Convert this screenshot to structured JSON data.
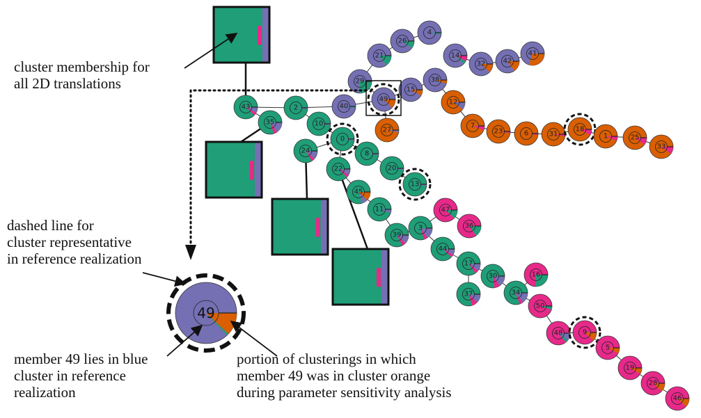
{
  "colors": {
    "green": "#1f9e77",
    "blue": "#7570b3",
    "orange": "#d95f02",
    "pink": "#e7298a"
  },
  "annotations": {
    "membership": "cluster membership for\nall 2D translations",
    "dashed": "dashed line for\ncluster representative\nin reference realization",
    "member": "member 49 lies in blue\ncluster in reference\nrealization",
    "portion": "portion of clusterings in which\nmember 49 was in cluster orange\nduring parameter sensitivity analysis"
  },
  "legend_node": {
    "label": "49",
    "cluster": "blue",
    "representative": true,
    "wedges": [
      {
        "color": "orange",
        "fraction": 0.12
      },
      {
        "color": "green",
        "fraction": 0.01
      }
    ]
  },
  "nodes": [
    {
      "id": "4",
      "cluster": "blue",
      "rep": false,
      "wedges": [
        {
          "color": "green",
          "fraction": 0.02
        }
      ]
    },
    {
      "id": "26",
      "cluster": "blue",
      "rep": false,
      "wedges": [
        {
          "color": "green",
          "fraction": 0.1
        }
      ]
    },
    {
      "id": "21",
      "cluster": "blue",
      "rep": false,
      "wedges": [
        {
          "color": "green",
          "fraction": 0.15
        }
      ]
    },
    {
      "id": "14",
      "cluster": "blue",
      "rep": false,
      "wedges": [
        {
          "color": "pink",
          "fraction": 0.08
        },
        {
          "color": "green",
          "fraction": 0.04
        }
      ]
    },
    {
      "id": "32",
      "cluster": "blue",
      "rep": false,
      "wedges": [
        {
          "color": "orange",
          "fraction": 0.12
        }
      ]
    },
    {
      "id": "42",
      "cluster": "blue",
      "rep": false,
      "wedges": [
        {
          "color": "orange",
          "fraction": 0.15
        }
      ]
    },
    {
      "id": "41",
      "cluster": "blue",
      "rep": false,
      "wedges": [
        {
          "color": "orange",
          "fraction": 0.3
        }
      ]
    },
    {
      "id": "29",
      "cluster": "blue",
      "rep": false,
      "wedges": [
        {
          "color": "green",
          "fraction": 0.25
        }
      ]
    },
    {
      "id": "38",
      "cluster": "blue",
      "rep": false,
      "wedges": [
        {
          "color": "orange",
          "fraction": 0.05
        }
      ]
    },
    {
      "id": "15",
      "cluster": "blue",
      "rep": false,
      "wedges": [
        {
          "color": "orange",
          "fraction": 0.08
        }
      ]
    },
    {
      "id": "49",
      "cluster": "blue",
      "rep": true,
      "wedges": [
        {
          "color": "orange",
          "fraction": 0.12
        }
      ]
    },
    {
      "id": "40",
      "cluster": "blue",
      "rep": false,
      "wedges": [
        {
          "color": "green",
          "fraction": 0.02
        }
      ]
    },
    {
      "id": "12",
      "cluster": "orange",
      "rep": false,
      "wedges": [
        {
          "color": "blue",
          "fraction": 0.1
        }
      ]
    },
    {
      "id": "27",
      "cluster": "orange",
      "rep": false,
      "wedges": [
        {
          "color": "blue",
          "fraction": 0.03
        }
      ]
    },
    {
      "id": "7",
      "cluster": "orange",
      "rep": false,
      "wedges": [
        {
          "color": "pink",
          "fraction": 0.06
        }
      ]
    },
    {
      "id": "23",
      "cluster": "orange",
      "rep": false,
      "wedges": [
        {
          "color": "pink",
          "fraction": 0.02
        }
      ]
    },
    {
      "id": "6",
      "cluster": "orange",
      "rep": false,
      "wedges": [
        {
          "color": "pink",
          "fraction": 0.02
        }
      ]
    },
    {
      "id": "31",
      "cluster": "orange",
      "rep": false,
      "wedges": [
        {
          "color": "pink",
          "fraction": 0.03
        }
      ]
    },
    {
      "id": "18",
      "cluster": "orange",
      "rep": true,
      "wedges": [
        {
          "color": "pink",
          "fraction": 0.08
        }
      ]
    },
    {
      "id": "1",
      "cluster": "orange",
      "rep": false,
      "wedges": [
        {
          "color": "pink",
          "fraction": 0.06
        }
      ]
    },
    {
      "id": "25",
      "cluster": "orange",
      "rep": false,
      "wedges": [
        {
          "color": "pink",
          "fraction": 0.1
        }
      ]
    },
    {
      "id": "33",
      "cluster": "orange",
      "rep": false,
      "wedges": [
        {
          "color": "pink",
          "fraction": 0.1
        }
      ]
    },
    {
      "id": "43",
      "cluster": "green",
      "rep": false,
      "wedges": [
        {
          "color": "blue",
          "fraction": 0.08
        },
        {
          "color": "pink",
          "fraction": 0.04
        }
      ]
    },
    {
      "id": "35",
      "cluster": "green",
      "rep": false,
      "wedges": [
        {
          "color": "blue",
          "fraction": 0.15
        },
        {
          "color": "pink",
          "fraction": 0.05
        }
      ]
    },
    {
      "id": "2",
      "cluster": "green",
      "rep": false,
      "wedges": [
        {
          "color": "blue",
          "fraction": 0.02
        }
      ]
    },
    {
      "id": "10",
      "cluster": "green",
      "rep": false,
      "wedges": [
        {
          "color": "blue",
          "fraction": 0.02
        }
      ]
    },
    {
      "id": "0",
      "cluster": "green",
      "rep": true,
      "wedges": [
        {
          "color": "blue",
          "fraction": 0.02
        }
      ]
    },
    {
      "id": "8",
      "cluster": "green",
      "rep": false,
      "wedges": [
        {
          "color": "blue",
          "fraction": 0.02
        }
      ]
    },
    {
      "id": "24",
      "cluster": "green",
      "rep": false,
      "wedges": [
        {
          "color": "blue",
          "fraction": 0.12
        },
        {
          "color": "pink",
          "fraction": 0.04
        }
      ]
    },
    {
      "id": "20",
      "cluster": "green",
      "rep": false,
      "wedges": [
        {
          "color": "blue",
          "fraction": 0.02
        }
      ]
    },
    {
      "id": "13",
      "cluster": "green",
      "rep": true,
      "wedges": [
        {
          "color": "blue",
          "fraction": 0.02
        }
      ]
    },
    {
      "id": "22",
      "cluster": "green",
      "rep": false,
      "wedges": [
        {
          "color": "blue",
          "fraction": 0.08
        },
        {
          "color": "pink",
          "fraction": 0.04
        }
      ]
    },
    {
      "id": "45",
      "cluster": "green",
      "rep": false,
      "wedges": [
        {
          "color": "orange",
          "fraction": 0.12
        },
        {
          "color": "blue",
          "fraction": 0.08
        }
      ]
    },
    {
      "id": "11",
      "cluster": "green",
      "rep": false,
      "wedges": [
        {
          "color": "blue",
          "fraction": 0.05
        }
      ]
    },
    {
      "id": "39",
      "cluster": "green",
      "rep": false,
      "wedges": [
        {
          "color": "blue",
          "fraction": 0.12
        },
        {
          "color": "pink",
          "fraction": 0.05
        }
      ]
    },
    {
      "id": "3",
      "cluster": "green",
      "rep": false,
      "wedges": [
        {
          "color": "blue",
          "fraction": 0.15
        },
        {
          "color": "pink",
          "fraction": 0.05
        }
      ]
    },
    {
      "id": "47",
      "cluster": "pink",
      "rep": false,
      "wedges": [
        {
          "color": "green",
          "fraction": 0.12
        }
      ]
    },
    {
      "id": "36",
      "cluster": "pink",
      "rep": false,
      "wedges": [
        {
          "color": "green",
          "fraction": 0.15
        }
      ]
    },
    {
      "id": "44",
      "cluster": "green",
      "rep": false,
      "wedges": [
        {
          "color": "blue",
          "fraction": 0.08
        },
        {
          "color": "pink",
          "fraction": 0.04
        }
      ]
    },
    {
      "id": "17",
      "cluster": "green",
      "rep": false,
      "wedges": [
        {
          "color": "blue",
          "fraction": 0.1
        },
        {
          "color": "pink",
          "fraction": 0.05
        }
      ]
    },
    {
      "id": "30",
      "cluster": "green",
      "rep": false,
      "wedges": [
        {
          "color": "blue",
          "fraction": 0.15
        },
        {
          "color": "pink",
          "fraction": 0.08
        }
      ]
    },
    {
      "id": "37",
      "cluster": "green",
      "rep": false,
      "wedges": [
        {
          "color": "blue",
          "fraction": 0.12
        },
        {
          "color": "pink",
          "fraction": 0.08
        }
      ]
    },
    {
      "id": "34",
      "cluster": "green",
      "rep": false,
      "wedges": [
        {
          "color": "blue",
          "fraction": 0.15
        },
        {
          "color": "pink",
          "fraction": 0.05
        }
      ]
    },
    {
      "id": "16",
      "cluster": "pink",
      "rep": false,
      "wedges": [
        {
          "color": "green",
          "fraction": 0.25
        }
      ]
    },
    {
      "id": "50",
      "cluster": "pink",
      "rep": false,
      "wedges": [
        {
          "color": "green",
          "fraction": 0.05
        }
      ]
    },
    {
      "id": "48",
      "cluster": "pink",
      "rep": false,
      "wedges": [
        {
          "color": "blue",
          "fraction": 0.1
        },
        {
          "color": "green",
          "fraction": 0.04
        }
      ]
    },
    {
      "id": "9",
      "cluster": "pink",
      "rep": true,
      "wedges": [
        {
          "color": "orange",
          "fraction": 0.12
        }
      ]
    },
    {
      "id": "5",
      "cluster": "pink",
      "rep": false,
      "wedges": [
        {
          "color": "orange",
          "fraction": 0.08
        }
      ]
    },
    {
      "id": "19",
      "cluster": "pink",
      "rep": false,
      "wedges": [
        {
          "color": "orange",
          "fraction": 0.08
        }
      ]
    },
    {
      "id": "28",
      "cluster": "pink",
      "rep": false,
      "wedges": [
        {
          "color": "orange",
          "fraction": 0.12
        }
      ]
    },
    {
      "id": "46",
      "cluster": "pink",
      "rep": false,
      "wedges": [
        {
          "color": "orange",
          "fraction": 0.12
        }
      ]
    }
  ],
  "edges": [
    [
      "4",
      "26"
    ],
    [
      "26",
      "21"
    ],
    [
      "21",
      "29"
    ],
    [
      "29",
      "49"
    ],
    [
      "14",
      "32"
    ],
    [
      "32",
      "42"
    ],
    [
      "42",
      "41"
    ],
    [
      "49",
      "15"
    ],
    [
      "15",
      "38"
    ],
    [
      "38",
      "12"
    ],
    [
      "12",
      "7"
    ],
    [
      "7",
      "23"
    ],
    [
      "23",
      "6"
    ],
    [
      "6",
      "31"
    ],
    [
      "31",
      "18"
    ],
    [
      "18",
      "1"
    ],
    [
      "1",
      "25"
    ],
    [
      "25",
      "33"
    ],
    [
      "49",
      "27"
    ],
    [
      "40",
      "49"
    ],
    [
      "43",
      "2"
    ],
    [
      "2",
      "40"
    ],
    [
      "43",
      "35"
    ],
    [
      "2",
      "10"
    ],
    [
      "10",
      "0"
    ],
    [
      "0",
      "8"
    ],
    [
      "0",
      "24"
    ],
    [
      "8",
      "20"
    ],
    [
      "20",
      "13"
    ],
    [
      "0",
      "22"
    ],
    [
      "22",
      "45"
    ],
    [
      "45",
      "11"
    ],
    [
      "11",
      "39"
    ],
    [
      "39",
      "3"
    ],
    [
      "3",
      "47"
    ],
    [
      "47",
      "36"
    ],
    [
      "3",
      "44"
    ],
    [
      "44",
      "17"
    ],
    [
      "17",
      "30"
    ],
    [
      "30",
      "34"
    ],
    [
      "17",
      "37"
    ],
    [
      "34",
      "16"
    ],
    [
      "34",
      "50"
    ],
    [
      "50",
      "48"
    ],
    [
      "48",
      "9"
    ],
    [
      "9",
      "5"
    ],
    [
      "5",
      "19"
    ],
    [
      "19",
      "28"
    ],
    [
      "28",
      "46"
    ]
  ]
}
